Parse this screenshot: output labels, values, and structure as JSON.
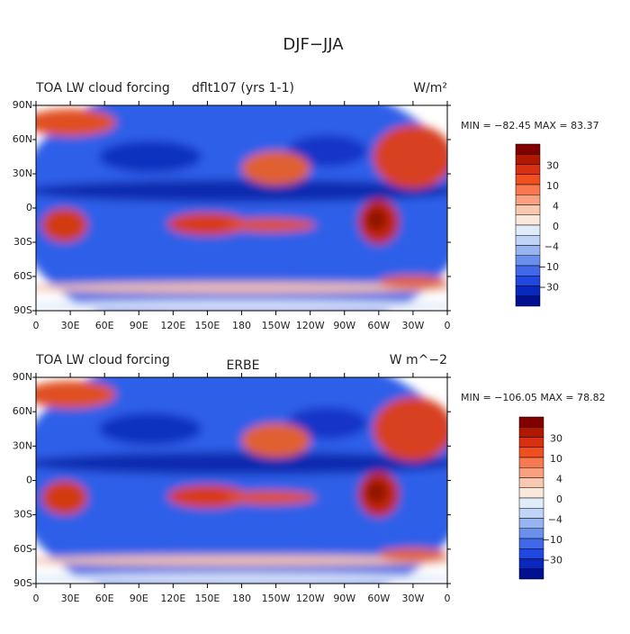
{
  "title": "DJF−JJA",
  "panels": [
    {
      "left_title": "TOA LW cloud forcing",
      "center_title": "dflt107 (yrs 1-1)",
      "units": "W/m²",
      "stats": "MIN = −82.45 MAX =  83.37",
      "lat_labels": [
        "90N",
        "60N",
        "30N",
        "0",
        "30S",
        "60S",
        "90S"
      ],
      "lon_labels": [
        "0",
        "30E",
        "60E",
        "90E",
        "120E",
        "150E",
        "180",
        "150W",
        "120W",
        "90W",
        "60W",
        "30W",
        "0"
      ],
      "colorbar_labels": [
        "30",
        "10",
        "4",
        "0",
        "−4",
        "−10",
        "−30"
      ]
    },
    {
      "left_title": "TOA LW cloud forcing",
      "center_title": "ERBE",
      "units": "W m^−2",
      "stats": "MIN = −106.05 MAX =  78.82",
      "lat_labels": [
        "90N",
        "60N",
        "30N",
        "0",
        "30S",
        "60S",
        "90S"
      ],
      "lon_labels": [
        "0",
        "30E",
        "60E",
        "90E",
        "120E",
        "150E",
        "180",
        "150W",
        "120W",
        "90W",
        "60W",
        "30W",
        "0"
      ],
      "colorbar_labels": [
        "30",
        "10",
        "4",
        "0",
        "−4",
        "−10",
        "−30"
      ]
    }
  ],
  "colorbar_colors": [
    "#800000",
    "#b01800",
    "#d83010",
    "#f05020",
    "#f87850",
    "#f8a080",
    "#f8c8b0",
    "#fbe8dc",
    "#e0ecfa",
    "#c0d4f8",
    "#98b4f0",
    "#6890ec",
    "#4068e8",
    "#2048e0",
    "#0828c0",
    "#001090"
  ]
}
